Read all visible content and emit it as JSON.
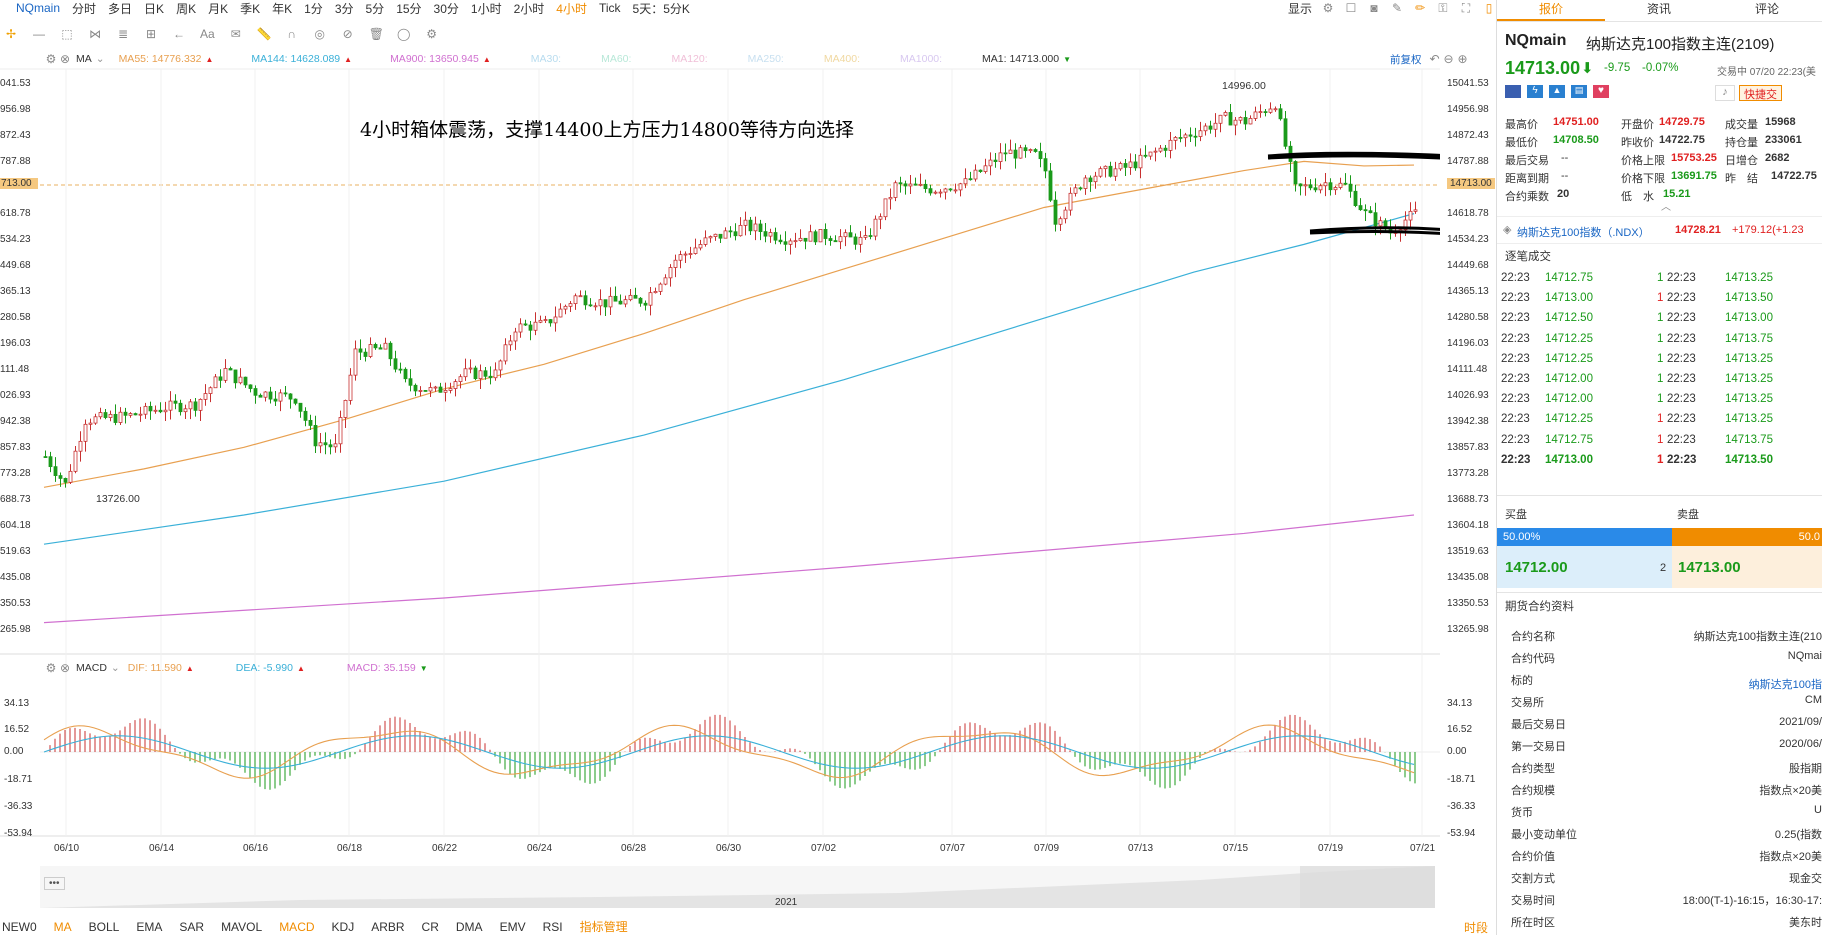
{
  "periods": {
    "symbol": "NQmain",
    "items": [
      "分时",
      "多日",
      "日K",
      "周K",
      "月K",
      "季K",
      "年K",
      "1分",
      "3分",
      "5分",
      "15分",
      "30分",
      "1小时",
      "2小时",
      "4小时",
      "Tick",
      "5天：5分K"
    ],
    "active": "4小时",
    "display_label": "显示"
  },
  "toolbar": {
    "aa": "Aa"
  },
  "ma_legend": {
    "title": "MA",
    "ma55": "MA55: 14776.332",
    "ma144": "MA144: 14628.089",
    "ma900": "MA900: 13650.945",
    "ma30": "MA30:",
    "ma60": "MA60:",
    "ma120": "MA120:",
    "ma250": "MA250:",
    "ma400": "MA400:",
    "ma1000": "MA1000:",
    "ma1": "MA1: 14713.000",
    "fq": "前复权"
  },
  "price_axis": [
    "041.53",
    "956.98",
    "872.43",
    "787.88",
    "713.00",
    "618.78",
    "534.23",
    "449.68",
    "365.13",
    "280.58",
    "196.03",
    "111.48",
    "026.93",
    "942.38",
    "857.83",
    "773.28",
    "688.73",
    "604.18",
    "519.63",
    "435.08",
    "350.53",
    "265.98"
  ],
  "price_axis_right": [
    "15041.53",
    "14956.98",
    "14872.43",
    "14787.88",
    "14713.00",
    "14618.78",
    "14534.23",
    "14449.68",
    "14365.13",
    "14280.58",
    "14196.03",
    "14111.48",
    "14026.93",
    "13942.38",
    "13857.83",
    "13773.28",
    "13688.73",
    "13604.18",
    "13519.63",
    "13435.08",
    "13350.53",
    "13265.98"
  ],
  "annotation": "4小时箱体震荡，支撑14400上方压力14800等待方向选择",
  "high_label": "14996.00",
  "low_label": "13726.00",
  "macd_legend": {
    "title": "MACD",
    "dif": "DIF: 11.590",
    "dea": "DEA: -5.990",
    "macd": "MACD: 35.159"
  },
  "macd_axis": [
    "34.13",
    "16.52",
    "0.00",
    "-18.71",
    "-36.33",
    "-53.94"
  ],
  "dates": [
    "06/10",
    "06/14",
    "06/16",
    "06/18",
    "06/22",
    "06/24",
    "06/28",
    "06/30",
    "07/02",
    "07/07",
    "07/09",
    "07/13",
    "07/15",
    "07/19",
    "07/21"
  ],
  "year": "2021",
  "bottom_indicators": [
    "NEW0",
    "MA",
    "BOLL",
    "EMA",
    "SAR",
    "MAVOL",
    "MACD",
    "KDJ",
    "ARBR",
    "CR",
    "DMA",
    "EMV",
    "RSI",
    "指标管理"
  ],
  "bottom_right": "时段",
  "colors": {
    "up": "#e02020",
    "down": "#1a9a1a",
    "ma55": "#e8a050",
    "ma144": "#3ab0d8",
    "ma900": "#d070d0",
    "accent": "#f08c00"
  },
  "chart_data": {
    "type": "candlestick",
    "title": "NQmain 4小时",
    "y_range": [
      13265.98,
      15041.53
    ],
    "last_price": 14713.0,
    "support": 14400,
    "resistance": 14800,
    "high": 14996.0,
    "low": 13726.0
  },
  "right": {
    "tabs": [
      "报价",
      "资讯",
      "评论"
    ],
    "name": "NQmain",
    "fullname": "纳斯达克100指数主连(2109)",
    "price": "14713.00",
    "change": "-9.75",
    "pct": "-0.07%",
    "status": "交易中 07/20 22:23(美",
    "quick": "快捷交",
    "stats": [
      [
        "最高价",
        "14751.00",
        "开盘价",
        "14729.75",
        "成交量",
        "15968"
      ],
      [
        "最低价",
        "14708.50",
        "昨收价",
        "14722.75",
        "持仓量",
        "233061"
      ],
      [
        "最后交易",
        "--",
        "价格上限",
        "15753.25",
        "日增仓",
        "2682"
      ],
      [
        "距离到期",
        "--",
        "价格下限",
        "13691.75",
        "昨　结",
        "14722.75"
      ]
    ],
    "mult_label": "合约乘数",
    "mult": "20",
    "water_label": "低　水",
    "water": "15.21",
    "ndx_name": "纳斯达克100指数（.NDX）",
    "ndx_price": "14728.21",
    "ndx_change": "+179.12(+1.23",
    "ticks_title": "逐笔成交",
    "ticks": [
      [
        "22:23",
        "14712.75",
        "1",
        "22:23",
        "14713.25"
      ],
      [
        "22:23",
        "14713.00",
        "1",
        "22:23",
        "14713.50"
      ],
      [
        "22:23",
        "14712.50",
        "1",
        "22:23",
        "14713.00"
      ],
      [
        "22:23",
        "14712.25",
        "1",
        "22:23",
        "14713.75"
      ],
      [
        "22:23",
        "14712.25",
        "1",
        "22:23",
        "14713.25"
      ],
      [
        "22:23",
        "14712.00",
        "1",
        "22:23",
        "14713.25"
      ],
      [
        "22:23",
        "14712.00",
        "1",
        "22:23",
        "14713.25"
      ],
      [
        "22:23",
        "14712.25",
        "1",
        "22:23",
        "14713.25"
      ],
      [
        "22:23",
        "14712.75",
        "1",
        "22:23",
        "14713.75"
      ],
      [
        "22:23",
        "14713.00",
        "1",
        "22:23",
        "14713.50"
      ]
    ],
    "buy_label": "买盘",
    "sell_label": "卖盘",
    "buy_pct": "50.00%",
    "sell_pct": "50.0",
    "bid": "14712.00",
    "bid_size": "2",
    "ask": "14713.00",
    "info_title": "期货合约资料",
    "info": [
      [
        "合约名称",
        "纳斯达克100指数主连(210"
      ],
      [
        "合约代码",
        "NQmai"
      ],
      [
        "标的",
        "纳斯达克100指"
      ],
      [
        "交易所",
        "CM"
      ],
      [
        "最后交易日",
        "2021/09/"
      ],
      [
        "第一交易日",
        "2020/06/"
      ],
      [
        "合约类型",
        "股指期"
      ],
      [
        "合约规模",
        "指数点×20美"
      ],
      [
        "货币",
        "U"
      ],
      [
        "最小变动单位",
        "0.25(指数"
      ],
      [
        "合约价值",
        "指数点×20美"
      ],
      [
        "交割方式",
        "现金交"
      ],
      [
        "交易时间",
        "18:00(T-1)-16:15，16:30-17:"
      ],
      [
        "所在时区",
        "美东时"
      ]
    ]
  }
}
